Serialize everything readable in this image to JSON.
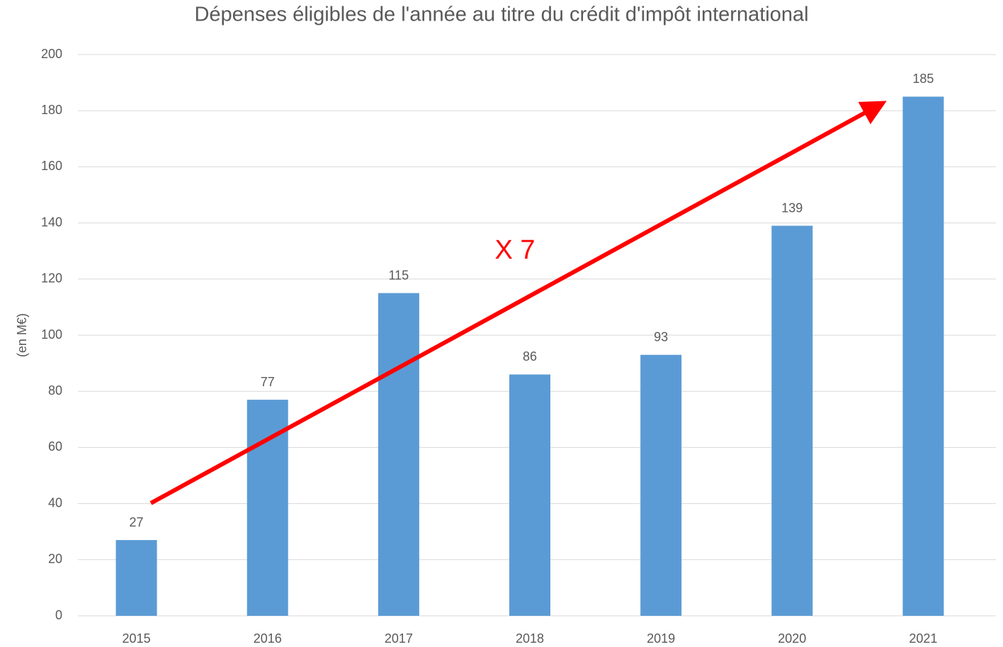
{
  "chart_data": {
    "type": "bar",
    "title": "Dépenses éligibles de l'année au titre du crédit d'impôt international",
    "y_label": "(en M€)",
    "categories": [
      "2015",
      "2016",
      "2017",
      "2018",
      "2019",
      "2020",
      "2021"
    ],
    "values": [
      27,
      77,
      115,
      86,
      93,
      139,
      185
    ],
    "color": "#5b9bd5",
    "ylim": [
      0,
      200
    ],
    "yticks": [
      0,
      20,
      40,
      60,
      80,
      100,
      120,
      140,
      160,
      180,
      200
    ],
    "grid": true,
    "annotation": {
      "text": "X 7",
      "color": "#ff0000"
    }
  }
}
